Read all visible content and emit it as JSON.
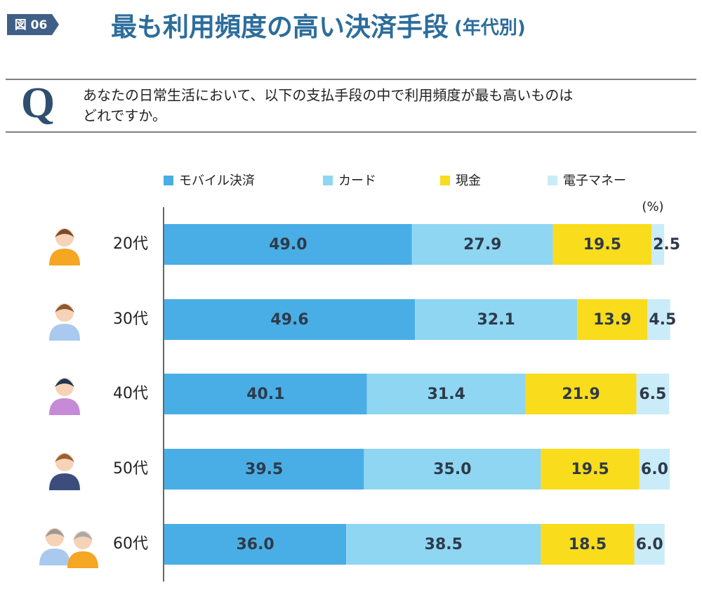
{
  "chart_data": {
    "type": "stacked-bar-horizontal",
    "badge": "図 06",
    "title": "最も利用頻度の高い決済手段",
    "title_suffix": "(年代別)",
    "question_mark": "Q",
    "question": [
      "あなたの日常生活において、以下の支払手段の中で利用頻度が最も高いものは",
      "どれですか。"
    ],
    "unit": "(%)",
    "categories": [
      "20代",
      "30代",
      "40代",
      "50代",
      "60代"
    ],
    "xlim": [
      0,
      100
    ],
    "series": [
      {
        "name": "モバイル決済",
        "color": "#4aaee6",
        "values": [
          49.0,
          49.6,
          40.1,
          39.5,
          36.0
        ],
        "value_labels": [
          "49.0",
          "49.6",
          "40.1",
          "39.5",
          "36.0"
        ]
      },
      {
        "name": "カード",
        "color": "#8fd6f2",
        "values": [
          27.9,
          32.1,
          31.4,
          35.0,
          38.5
        ],
        "value_labels": [
          "27.9",
          "32.1",
          "31.4",
          "35.0",
          "38.5"
        ]
      },
      {
        "name": "現金",
        "color": "#f9dc1c",
        "values": [
          19.5,
          13.9,
          21.9,
          19.5,
          18.5
        ],
        "value_labels": [
          "19.5",
          "13.9",
          "21.9",
          "19.5",
          "18.5"
        ]
      },
      {
        "name": "電子マネー",
        "color": "#c9ecf8",
        "values": [
          2.5,
          4.5,
          6.5,
          6.0,
          6.0
        ],
        "value_labels": [
          "2.5",
          "4.5",
          "6.5",
          "6.0",
          "6.0"
        ]
      }
    ]
  }
}
